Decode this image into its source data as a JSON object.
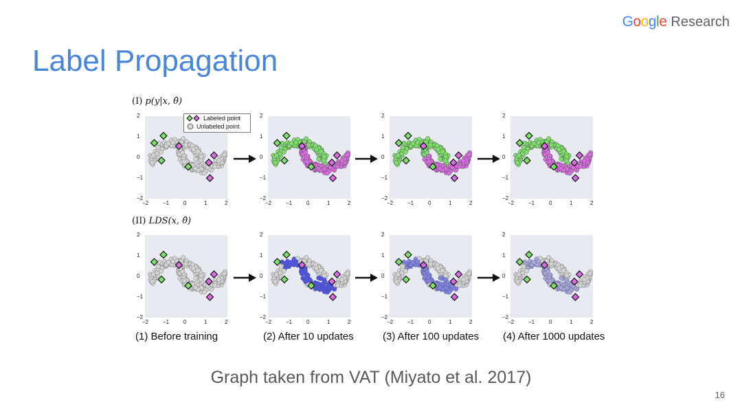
{
  "header": {
    "logo_letters": [
      {
        "ch": "G",
        "color": "#4285F4"
      },
      {
        "ch": "o",
        "color": "#EA4335"
      },
      {
        "ch": "o",
        "color": "#FBBC05"
      },
      {
        "ch": "g",
        "color": "#4285F4"
      },
      {
        "ch": "l",
        "color": "#34A853"
      },
      {
        "ch": "e",
        "color": "#EA4335"
      }
    ],
    "logo_suffix": "Research"
  },
  "slide": {
    "title": "Label Propagation",
    "subtitle": "Graph taken from VAT (Miyato et al. 2017)",
    "page_number": "16"
  },
  "figure": {
    "row1_label_prefix": "(I)",
    "row1_label_formula": "p(y|x, θ̂)",
    "row2_label_prefix": "(II)",
    "row2_label_formula": "LDS(x, θ̂)",
    "legend": {
      "labeled": "Labeled point",
      "unlabeled": "Unlabeled point"
    },
    "captions": [
      "(1) Before training",
      "(2) After 10 updates",
      "(3) After 100 updates",
      "(4) After 1000 updates"
    ],
    "ticks_x": [
      "−2",
      "−1",
      "0",
      "1",
      "2"
    ],
    "ticks_y": [
      "2",
      "1",
      "0",
      "−1",
      "−2"
    ],
    "colors": {
      "green": "#7ee06a",
      "magenta": "#d96ce0",
      "gray": "#d4d4d4",
      "blue": "#3a3fd8",
      "bg": "#e8eaf2"
    }
  },
  "chart_data": {
    "type": "scatter",
    "x_range": [
      -2,
      2
    ],
    "y_range": [
      -2,
      2
    ],
    "labeled_points": [
      {
        "x": -1.55,
        "y": 0.7,
        "class": "green"
      },
      {
        "x": -1.1,
        "y": 1.05,
        "class": "green"
      },
      {
        "x": -1.2,
        "y": -0.15,
        "class": "green"
      },
      {
        "x": 0.1,
        "y": -0.45,
        "class": "green"
      },
      {
        "x": -0.35,
        "y": 0.55,
        "class": "magenta"
      },
      {
        "x": 1.35,
        "y": 0.1,
        "class": "magenta"
      },
      {
        "x": 1.1,
        "y": -0.25,
        "class": "magenta"
      },
      {
        "x": 1.15,
        "y": -1.0,
        "class": "magenta"
      }
    ],
    "rows": [
      {
        "label": "p(y|x, θ̂)",
        "panels": [
          "before training",
          "after 10 updates",
          "after 100 updates",
          "after 1000 updates"
        ]
      },
      {
        "label": "LDS(x, θ̂)",
        "panels": [
          "before training",
          "after 10 updates",
          "after 100 updates",
          "after 1000 updates"
        ]
      }
    ]
  }
}
